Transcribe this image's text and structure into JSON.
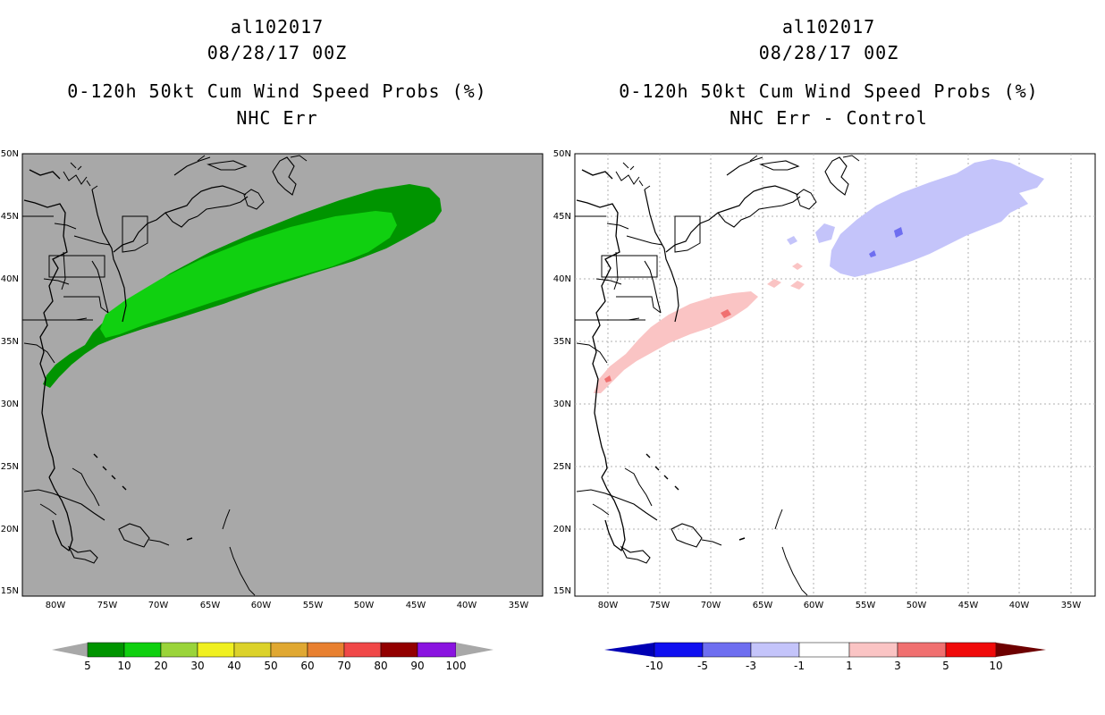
{
  "left_panel": {
    "title_lines": [
      "al102017",
      "08/28/17 00Z",
      "0-120h 50kt Cum Wind Speed Probs (%)",
      "NHC Err"
    ],
    "background_color": "#a8a8a8",
    "colorbar_labels": [
      "5",
      "10",
      "20",
      "30",
      "40",
      "50",
      "60",
      "70",
      "80",
      "90",
      "100"
    ],
    "colorbar_colors": [
      "#009400",
      "#10d010",
      "#9ad43a",
      "#f0f020",
      "#dcd22a",
      "#e0a832",
      "#e88030",
      "#f04848",
      "#920000",
      "#8a14e0"
    ]
  },
  "right_panel": {
    "title_lines": [
      "al102017",
      "08/28/17 00Z",
      "0-120h 50kt Cum Wind Speed Probs (%)",
      "NHC Err - Control"
    ],
    "background_color": "#ffffff",
    "colorbar_labels": [
      "-10",
      "-5",
      "-3",
      "-1",
      "1",
      "3",
      "5",
      "10"
    ],
    "colorbar_colors": [
      "#0000b4",
      "#1010f0",
      "#6e6ef0",
      "#c4c4fa",
      "#ffffff",
      "#fac4c4",
      "#f07070",
      "#f00a0a",
      "#6e0000"
    ]
  },
  "map": {
    "lat_labels": [
      "50N",
      "45N",
      "40N",
      "35N",
      "30N",
      "25N",
      "20N",
      "15N"
    ],
    "lon_labels": [
      "80W",
      "75W",
      "70W",
      "65W",
      "60W",
      "55W",
      "50W",
      "45W",
      "40W",
      "35W"
    ]
  }
}
